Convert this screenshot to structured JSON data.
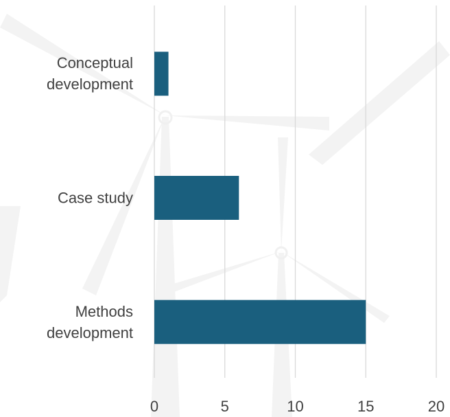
{
  "chart_data": {
    "type": "bar",
    "orientation": "horizontal",
    "categories": [
      "Conceptual development",
      "Case study",
      "Methods development"
    ],
    "values": [
      1,
      6,
      15
    ],
    "color": "#1a5f7e",
    "xlim": [
      0,
      20
    ],
    "xticks": [
      0,
      5,
      10,
      15,
      20
    ],
    "grid": true
  }
}
